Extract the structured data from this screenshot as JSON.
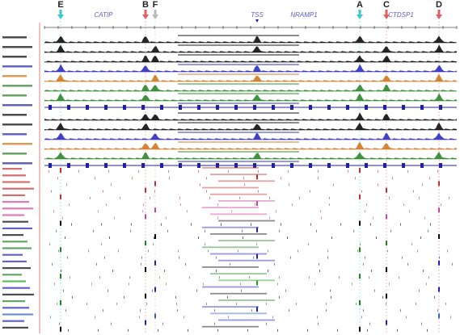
{
  "markers": [
    {
      "label": "E"
    },
    {
      "label": "B"
    },
    {
      "label": "F"
    },
    {
      "label": "A"
    },
    {
      "label": "C"
    },
    {
      "label": "D"
    }
  ],
  "genes": [
    {
      "label": "CATIP"
    },
    {
      "label": "TSS"
    },
    {
      "label": "NRAMP1"
    },
    {
      "label": "CTDSP1"
    }
  ]
}
